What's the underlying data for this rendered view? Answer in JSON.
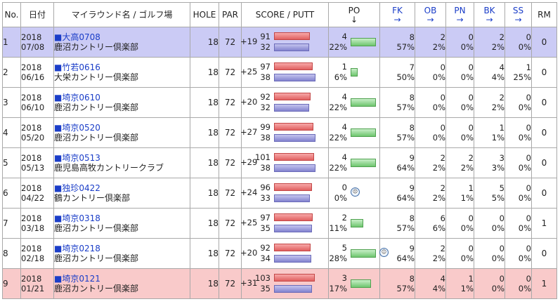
{
  "headers": {
    "no": "No.",
    "date": "日付",
    "course": "マイラウンド名 / ゴルフ場",
    "hole": "HOLE",
    "par": "PAR",
    "score_putt": "SCORE / PUTT",
    "po": "PO",
    "po_arrow": "↓",
    "fk": "FK",
    "ob": "OB",
    "pn": "PN",
    "bk": "BK",
    "ss": "SS",
    "sort_arrow": "→",
    "rm": "RM"
  },
  "rows": [
    {
      "no": "1",
      "year": "2018",
      "md": "07/08",
      "round_name": "■大高0708",
      "course": "鹿沼カントリー倶楽部",
      "hole": "18",
      "par": "72",
      "diff": "+19",
      "score": "91",
      "putt": "32",
      "score_value": 91,
      "putt_value": 32,
      "po_count": "4",
      "po_pct": "22%",
      "po_fraction": 0.22,
      "fk": "8",
      "fk_pct": "57%",
      "ob": "2",
      "ob_pct": "2%",
      "pn": "0",
      "pn_pct": "0%",
      "bk": "2",
      "bk_pct": "2%",
      "ss": "0",
      "ss_pct": "0%",
      "rm": "0",
      "highlight": "blue",
      "face": ""
    },
    {
      "no": "2",
      "year": "2018",
      "md": "06/16",
      "round_name": "■竹若0616",
      "course": "大栄カントリー倶楽部",
      "hole": "18",
      "par": "72",
      "diff": "+25",
      "score": "97",
      "putt": "38",
      "score_value": 97,
      "putt_value": 38,
      "po_count": "1",
      "po_pct": "6%",
      "po_fraction": 0.06,
      "fk": "7",
      "fk_pct": "50%",
      "ob": "0",
      "ob_pct": "0%",
      "pn": "0",
      "pn_pct": "0%",
      "bk": "4",
      "bk_pct": "4%",
      "ss": "1",
      "ss_pct": "25%",
      "rm": "0",
      "highlight": "",
      "face": ""
    },
    {
      "no": "3",
      "year": "2018",
      "md": "06/10",
      "round_name": "■埼京0610",
      "course": "鹿沼カントリー倶楽部",
      "hole": "18",
      "par": "72",
      "diff": "+20",
      "score": "92",
      "putt": "32",
      "score_value": 92,
      "putt_value": 32,
      "po_count": "4",
      "po_pct": "22%",
      "po_fraction": 0.22,
      "fk": "8",
      "fk_pct": "57%",
      "ob": "0",
      "ob_pct": "0%",
      "pn": "0",
      "pn_pct": "0%",
      "bk": "2",
      "bk_pct": "2%",
      "ss": "0",
      "ss_pct": "0%",
      "rm": "0",
      "highlight": "",
      "face": ""
    },
    {
      "no": "4",
      "year": "2018",
      "md": "05/20",
      "round_name": "■埼京0520",
      "course": "鹿沼カントリー倶楽部",
      "hole": "18",
      "par": "72",
      "diff": "+27",
      "score": "99",
      "putt": "38",
      "score_value": 99,
      "putt_value": 38,
      "po_count": "4",
      "po_pct": "22%",
      "po_fraction": 0.22,
      "fk": "8",
      "fk_pct": "57%",
      "ob": "0",
      "ob_pct": "0%",
      "pn": "0",
      "pn_pct": "0%",
      "bk": "1",
      "bk_pct": "1%",
      "ss": "0",
      "ss_pct": "0%",
      "rm": "0",
      "highlight": "",
      "face": ""
    },
    {
      "no": "5",
      "year": "2018",
      "md": "05/13",
      "round_name": "■埼京0513",
      "course": "鹿児島高牧カントリークラブ",
      "hole": "18",
      "par": "72",
      "diff": "+29",
      "score": "101",
      "putt": "38",
      "score_value": 101,
      "putt_value": 38,
      "po_count": "4",
      "po_pct": "22%",
      "po_fraction": 0.22,
      "fk": "9",
      "fk_pct": "64%",
      "ob": "2",
      "ob_pct": "2%",
      "pn": "2",
      "pn_pct": "2%",
      "bk": "3",
      "bk_pct": "3%",
      "ss": "0",
      "ss_pct": "0%",
      "rm": "0",
      "highlight": "",
      "face": ""
    },
    {
      "no": "6",
      "year": "2018",
      "md": "04/22",
      "round_name": "■独珍0422",
      "course": "鶴カントリー倶楽部",
      "hole": "18",
      "par": "72",
      "diff": "+24",
      "score": "96",
      "putt": "33",
      "score_value": 96,
      "putt_value": 33,
      "po_count": "0",
      "po_pct": "0%",
      "po_fraction": 0,
      "fk": "9",
      "fk_pct": "64%",
      "ob": "2",
      "ob_pct": "2%",
      "pn": "1",
      "pn_pct": "1%",
      "bk": "5",
      "bk_pct": "5%",
      "ss": "0",
      "ss_pct": "0%",
      "rm": "0",
      "highlight": "",
      "face": "sad"
    },
    {
      "no": "7",
      "year": "2018",
      "md": "03/18",
      "round_name": "■埼京0318",
      "course": "鹿沼カントリー倶楽部",
      "hole": "18",
      "par": "72",
      "diff": "+25",
      "score": "97",
      "putt": "35",
      "score_value": 97,
      "putt_value": 35,
      "po_count": "2",
      "po_pct": "11%",
      "po_fraction": 0.11,
      "fk": "8",
      "fk_pct": "57%",
      "ob": "6",
      "ob_pct": "6%",
      "pn": "0",
      "pn_pct": "0%",
      "bk": "0",
      "bk_pct": "0%",
      "ss": "0",
      "ss_pct": "0%",
      "rm": "1",
      "highlight": "",
      "face": ""
    },
    {
      "no": "8",
      "year": "2018",
      "md": "02/18",
      "round_name": "■埼京0218",
      "course": "鹿沼カントリー倶楽部",
      "hole": "18",
      "par": "72",
      "diff": "+20",
      "score": "92",
      "putt": "34",
      "score_value": 92,
      "putt_value": 34,
      "po_count": "5",
      "po_pct": "28%",
      "po_fraction": 0.28,
      "fk": "9",
      "fk_pct": "64%",
      "ob": "2",
      "ob_pct": "2%",
      "pn": "0",
      "pn_pct": "0%",
      "bk": "0",
      "bk_pct": "0%",
      "ss": "0",
      "ss_pct": "0%",
      "rm": "0",
      "highlight": "",
      "face": "happy"
    },
    {
      "no": "9",
      "year": "2018",
      "md": "01/21",
      "round_name": "■埼京0121",
      "course": "鹿沼カントリー倶楽部",
      "hole": "18",
      "par": "72",
      "diff": "+31",
      "score": "103",
      "putt": "35",
      "score_value": 103,
      "putt_value": 35,
      "po_count": "3",
      "po_pct": "17%",
      "po_fraction": 0.17,
      "fk": "8",
      "fk_pct": "57%",
      "ob": "4",
      "ob_pct": "4%",
      "pn": "1",
      "pn_pct": "1%",
      "bk": "0",
      "bk_pct": "0%",
      "ss": "0",
      "ss_pct": "0%",
      "rm": "1",
      "highlight": "pink",
      "face": ""
    }
  ],
  "colors": {
    "highlight_blue": "#cbcbf5",
    "highlight_pink": "#f9caca",
    "link": "#1a3dc8",
    "score_bar": "#e06060",
    "putt_bar": "#8383cf",
    "po_bar": "#6fc66f"
  }
}
